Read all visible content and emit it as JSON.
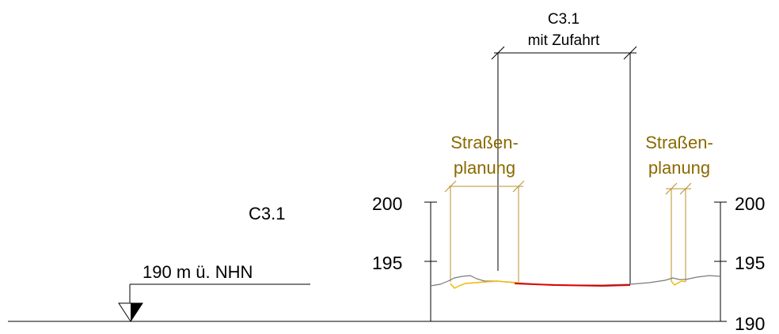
{
  "section_label": "C3.1",
  "datum_label": "190 m ü. NHN",
  "top_dimension": {
    "line1": "C3.1",
    "line2": "mit Zufahrt"
  },
  "street_planning_left": {
    "line1": "Straßen-",
    "line2": "planung"
  },
  "street_planning_right": {
    "line1": "Straßen-",
    "line2": "planung"
  },
  "scale_left": {
    "tick_200": "200",
    "tick_195": "195"
  },
  "scale_right": {
    "tick_200": "200",
    "tick_195": "195",
    "tick_190": "190"
  },
  "colors": {
    "line": "#000000",
    "planning": "#8a6a00",
    "planning_line": "#b8902a",
    "road": "#e00000",
    "yellow": "#f2b600",
    "terrain": "#7a7a7a"
  }
}
